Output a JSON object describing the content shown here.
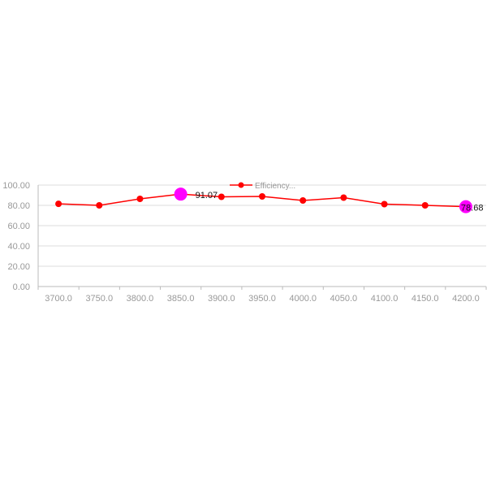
{
  "chart_data": {
    "type": "line",
    "title": "",
    "xlabel": "",
    "ylabel": "",
    "categories": [
      "3700.0",
      "3750.0",
      "3800.0",
      "3850.0",
      "3900.0",
      "3950.0",
      "4000.0",
      "4050.0",
      "4100.0",
      "4150.0",
      "4200.0"
    ],
    "series": [
      {
        "name": "Efficiency...",
        "color": "#ff0000",
        "values": [
          81.5,
          80.0,
          86.4,
          91.07,
          88.4,
          88.8,
          84.8,
          87.6,
          81.2,
          80.0,
          78.68
        ]
      }
    ],
    "highlights": [
      {
        "index": 3,
        "label": "91.07",
        "color": "#ff00ff"
      },
      {
        "index": 10,
        "label": "78.68",
        "color": "#ff00ff"
      }
    ],
    "yticks": [
      "0.00",
      "20.00",
      "40.00",
      "60.00",
      "80.00",
      "100.00"
    ],
    "ylim": [
      0,
      100
    ],
    "grid": true,
    "legend": "top-center"
  }
}
